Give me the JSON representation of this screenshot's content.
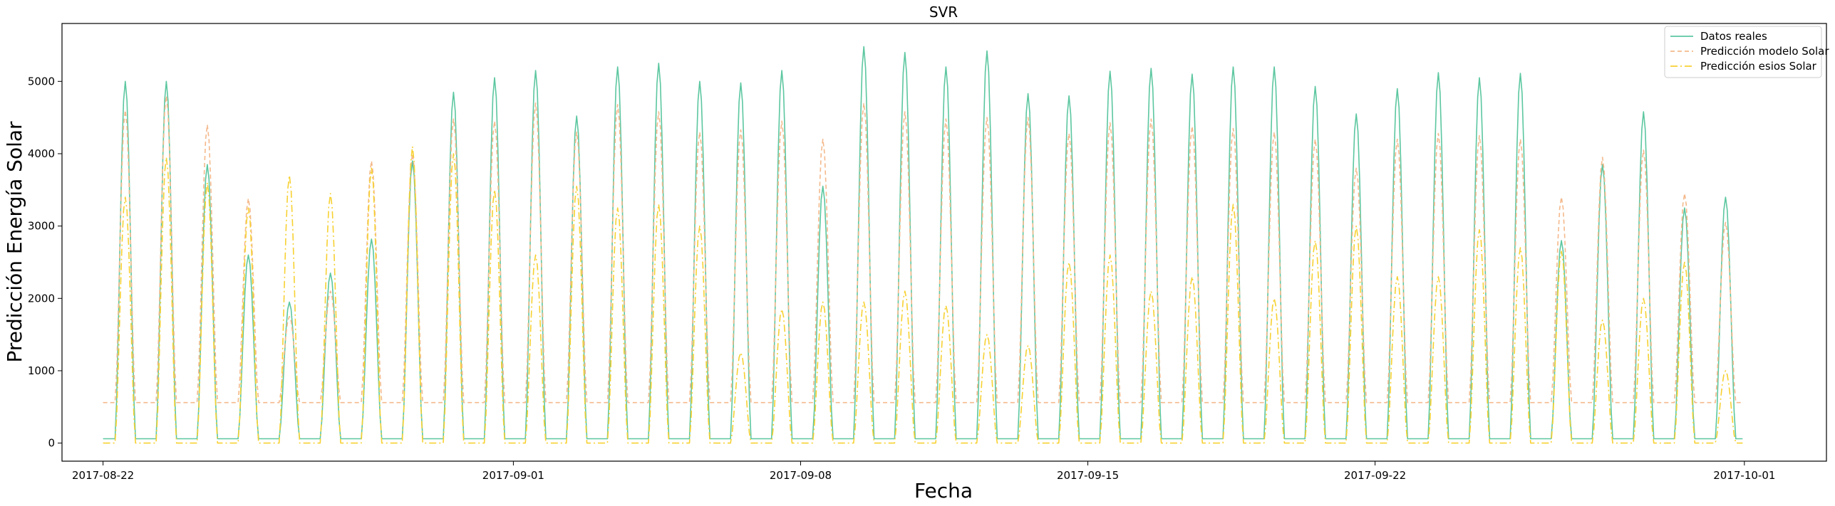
{
  "chart_data": {
    "type": "line",
    "title": "SVR",
    "xlabel": "Fecha",
    "ylabel": "Predicción Energía Solar",
    "x_start": "2017-08-22T00:00",
    "x_end": "2017-09-30T23:00",
    "xlim": [
      "2017-08-21",
      "2017-10-03"
    ],
    "ylim": [
      -250,
      5800
    ],
    "x_ticks": [
      "2017-08-22",
      "2017-09-01",
      "2017-09-08",
      "2017-09-15",
      "2017-09-22",
      "2017-10-01"
    ],
    "y_ticks": [
      0,
      1000,
      2000,
      3000,
      4000,
      5000
    ],
    "grid": false,
    "legend_position": "upper right",
    "series": [
      {
        "name": "Datos reales",
        "color": "#5cc7a0",
        "style": "solid",
        "baseline": 60,
        "daily_peaks": [
          5000,
          5000,
          3850,
          2600,
          1950,
          2350,
          2820,
          3900,
          4850,
          5050,
          5150,
          4520,
          5200,
          5250,
          5000,
          4980,
          5150,
          3550,
          5480,
          5400,
          5200,
          5420,
          4830,
          4800,
          5140,
          5180,
          5100,
          5200,
          5200,
          4930,
          4550,
          4900,
          5120,
          5050,
          5110,
          2800,
          3850,
          4580,
          3250,
          3400
        ]
      },
      {
        "name": "Predicción modelo Solar",
        "color": "#f4b98c",
        "style": "dashed",
        "baseline": 560,
        "daily_peaks": [
          4600,
          4800,
          4400,
          3380,
          1750,
          2100,
          3900,
          4000,
          4480,
          4450,
          4700,
          4300,
          4680,
          4580,
          4300,
          4330,
          4450,
          4200,
          4700,
          4580,
          4480,
          4500,
          4500,
          4280,
          4430,
          4480,
          4380,
          4350,
          4300,
          4200,
          3800,
          4200,
          4280,
          4250,
          4200,
          3400,
          3950,
          4050,
          3450,
          3050
        ]
      },
      {
        "name": "Predicción esios Solar",
        "color": "#f7d132",
        "style": "dashdot",
        "baseline": 0,
        "daily_peaks": [
          3400,
          3950,
          3600,
          3250,
          3700,
          3450,
          3800,
          4100,
          4000,
          3500,
          2600,
          3550,
          3250,
          3300,
          3000,
          1250,
          1850,
          1950,
          1950,
          2100,
          1900,
          1500,
          1350,
          2500,
          2600,
          2100,
          2300,
          3300,
          2000,
          2800,
          3000,
          2300,
          2300,
          2950,
          2700,
          2650,
          1700,
          2000,
          2500,
          1000
        ]
      }
    ]
  }
}
